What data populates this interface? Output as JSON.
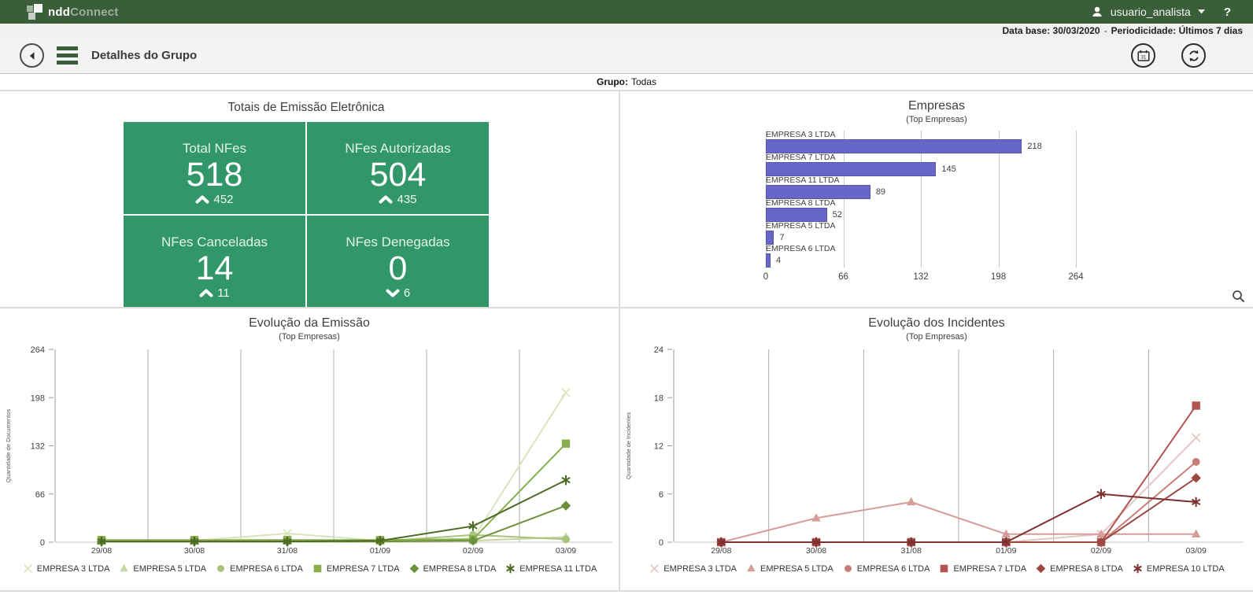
{
  "topbar": {
    "logo_ndd": "ndd",
    "logo_connect": "Connect",
    "user": "usuario_analista",
    "help": "?"
  },
  "infobar": {
    "data_base_label": "Data base:",
    "data_base_value": "30/03/2020",
    "separator": "-",
    "period_label": "Periodicidade:",
    "period_value": "Últimos 7 dias"
  },
  "nav": {
    "title": "Detalhes do Grupo"
  },
  "group_row": {
    "label": "Grupo:",
    "value": "Todas"
  },
  "kpi": {
    "title": "Totais de Emissão Eletrônica",
    "accent": "#319768",
    "cards": [
      {
        "label": "Total NFes",
        "value": "518",
        "trend": "up",
        "trend_value": "452"
      },
      {
        "label": "NFes Autorizadas",
        "value": "504",
        "trend": "up",
        "trend_value": "435"
      },
      {
        "label": "NFes Canceladas",
        "value": "14",
        "trend": "up",
        "trend_value": "11"
      },
      {
        "label": "NFes Denegadas",
        "value": "0",
        "trend": "down",
        "trend_value": "6"
      }
    ]
  },
  "chart_data": [
    {
      "id": "empresas",
      "type": "bar",
      "orientation": "horizontal",
      "title": "Empresas",
      "subtitle": "(Top Empresas)",
      "categories": [
        "EMPRESA 3 LTDA",
        "EMPRESA 7 LTDA",
        "EMPRESA 11 LTDA",
        "EMPRESA 8 LTDA",
        "EMPRESA 5 LTDA",
        "EMPRESA 6 LTDA"
      ],
      "values": [
        218,
        145,
        89,
        52,
        7,
        4
      ],
      "xlim": [
        0,
        264
      ],
      "xticks": [
        0,
        66,
        132,
        198,
        264
      ],
      "bar_color": "#6767C9",
      "bar_border": "#5454AE",
      "grid": "vertical"
    },
    {
      "id": "evolucao-emissao",
      "type": "line",
      "title": "Evolução da Emissão",
      "subtitle": "(Top Empresas)",
      "ylabel": "Quantidade de Documentos",
      "categories": [
        "29/08",
        "30/08",
        "31/08",
        "01/09",
        "02/09",
        "03/09"
      ],
      "ylim": [
        0,
        264
      ],
      "yticks": [
        0,
        66,
        132,
        198,
        264
      ],
      "legend_position": "bottom",
      "grid": "vertical",
      "series": [
        {
          "name": "EMPRESA 3 LTDA",
          "marker": "x",
          "color": "#D8E4BE",
          "values": [
            2,
            2,
            12,
            2,
            5,
            205
          ]
        },
        {
          "name": "EMPRESA 5 LTDA",
          "marker": "triangle",
          "color": "#C5D6A2",
          "values": [
            1,
            1,
            2,
            1,
            2,
            7
          ]
        },
        {
          "name": "EMPRESA 6 LTDA",
          "marker": "circle",
          "color": "#A8C47C",
          "values": [
            1,
            1,
            1,
            1,
            10,
            4
          ]
        },
        {
          "name": "EMPRESA 7 LTDA",
          "marker": "square",
          "color": "#8AAE4E",
          "values": [
            3,
            3,
            3,
            3,
            4,
            135
          ]
        },
        {
          "name": "EMPRESA 8 LTDA",
          "marker": "diamond",
          "color": "#6C9138",
          "values": [
            1,
            1,
            1,
            1,
            2,
            50
          ]
        },
        {
          "name": "EMPRESA 11 LTDA",
          "marker": "asterisk",
          "color": "#4C6B24",
          "values": [
            1,
            1,
            1,
            2,
            22,
            85
          ]
        }
      ]
    },
    {
      "id": "evolucao-incidentes",
      "type": "line",
      "title": "Evolução dos Incidentes",
      "subtitle": "(Top Empresas)",
      "ylabel": "Quantidade de Incidentes",
      "categories": [
        "29/08",
        "30/08",
        "31/08",
        "01/09",
        "02/09",
        "03/09"
      ],
      "ylim": [
        0,
        24
      ],
      "yticks": [
        0,
        6,
        12,
        18,
        24
      ],
      "legend_position": "bottom",
      "grid": "vertical",
      "series": [
        {
          "name": "EMPRESA 3 LTDA",
          "marker": "x",
          "color": "#E3C5C4",
          "values": [
            0,
            0,
            0,
            0,
            1,
            13
          ]
        },
        {
          "name": "EMPRESA 5 LTDA",
          "marker": "triangle",
          "color": "#D69C98",
          "values": [
            0,
            3,
            5,
            1,
            1,
            1
          ]
        },
        {
          "name": "EMPRESA 6 LTDA",
          "marker": "circle",
          "color": "#C87D78",
          "values": [
            0,
            0,
            0,
            0,
            0,
            10
          ]
        },
        {
          "name": "EMPRESA 7 LTDA",
          "marker": "square",
          "color": "#B25450",
          "values": [
            0,
            0,
            0,
            0,
            0,
            17
          ]
        },
        {
          "name": "EMPRESA 8 LTDA",
          "marker": "diamond",
          "color": "#9E4844",
          "values": [
            0,
            0,
            0,
            0,
            0,
            8
          ]
        },
        {
          "name": "EMPRESA 10 LTDA",
          "marker": "asterisk",
          "color": "#7E312E",
          "values": [
            0,
            0,
            0,
            0,
            6,
            5
          ]
        }
      ]
    }
  ]
}
